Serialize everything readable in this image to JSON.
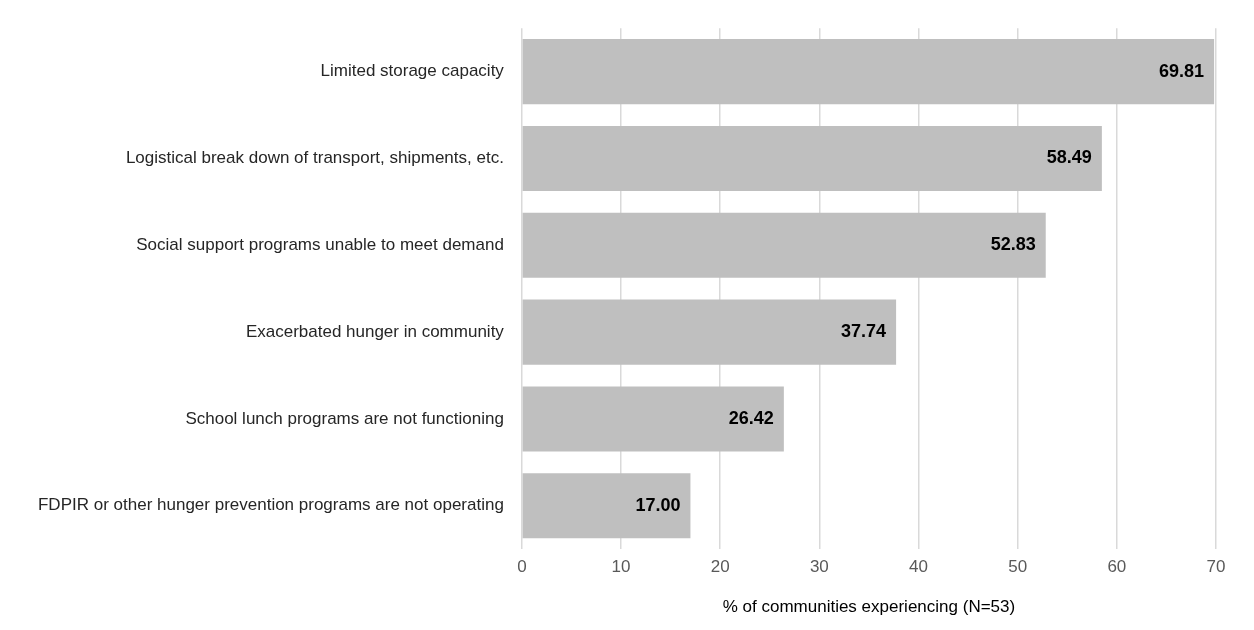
{
  "chart_data": {
    "type": "bar",
    "orientation": "horizontal",
    "xlabel": "% of communities experiencing (N=53)",
    "categories": [
      "Limited storage capacity",
      "Logistical break down of transport, shipments, etc.",
      "Social support programs unable to meet demand",
      "Exacerbated hunger in community",
      "School lunch programs are not functioning",
      "FDPIR or other hunger prevention programs are not operating"
    ],
    "values": [
      69.81,
      58.49,
      52.83,
      37.74,
      26.42,
      17.0
    ],
    "value_labels": [
      "69.81",
      "58.49",
      "52.83",
      "37.74",
      "26.42",
      "17.00"
    ],
    "color": "#bfbfbf",
    "xlim": [
      0,
      70
    ],
    "xticks": [
      0,
      10,
      20,
      30,
      40,
      50,
      60,
      70
    ],
    "grid": "x",
    "legend": false
  }
}
